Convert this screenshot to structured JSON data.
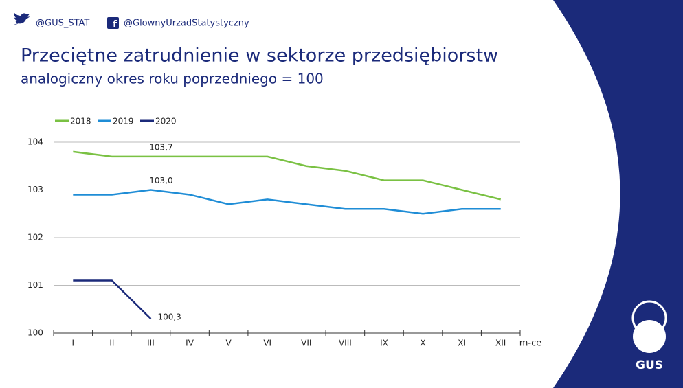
{
  "header": {
    "twitter": "@GUS_STAT",
    "facebook": "@GlownyUrzadStatystyczny",
    "logo": "GUS"
  },
  "chart_data": {
    "type": "line",
    "title": "Przeciętne zatrudnienie w sektorze przedsiębiorstw",
    "subtitle": "analogiczny okres roku poprzedniego = 100",
    "x_label": "m-ce",
    "categories": [
      "I",
      "II",
      "III",
      "IV",
      "V",
      "VI",
      "VII",
      "VIII",
      "IX",
      "X",
      "XI",
      "XII"
    ],
    "series": [
      {
        "name": "2018",
        "color": "#7ac143",
        "values": [
          103.8,
          103.7,
          103.7,
          103.7,
          103.7,
          103.7,
          103.5,
          103.4,
          103.2,
          103.2,
          103.0,
          102.8
        ],
        "value_labels": [
          null,
          null,
          "103,7",
          null,
          null,
          null,
          null,
          null,
          null,
          null,
          null,
          null
        ]
      },
      {
        "name": "2019",
        "color": "#1f8dd6",
        "values": [
          102.9,
          102.9,
          103.0,
          102.9,
          102.7,
          102.8,
          102.7,
          102.6,
          102.6,
          102.5,
          102.6,
          102.6
        ],
        "value_labels": [
          null,
          null,
          "103,0",
          null,
          null,
          null,
          null,
          null,
          null,
          null,
          null,
          null
        ]
      },
      {
        "name": "2020",
        "color": "#1b2a7a",
        "values": [
          101.1,
          101.1,
          100.3,
          null,
          null,
          null,
          null,
          null,
          null,
          null,
          null,
          null
        ],
        "value_labels": [
          null,
          null,
          "100,3",
          null,
          null,
          null,
          null,
          null,
          null,
          null,
          null,
          null
        ]
      }
    ],
    "ylim": [
      100,
      104
    ],
    "yticks": [
      100,
      101,
      102,
      103,
      104
    ],
    "grid": true
  }
}
